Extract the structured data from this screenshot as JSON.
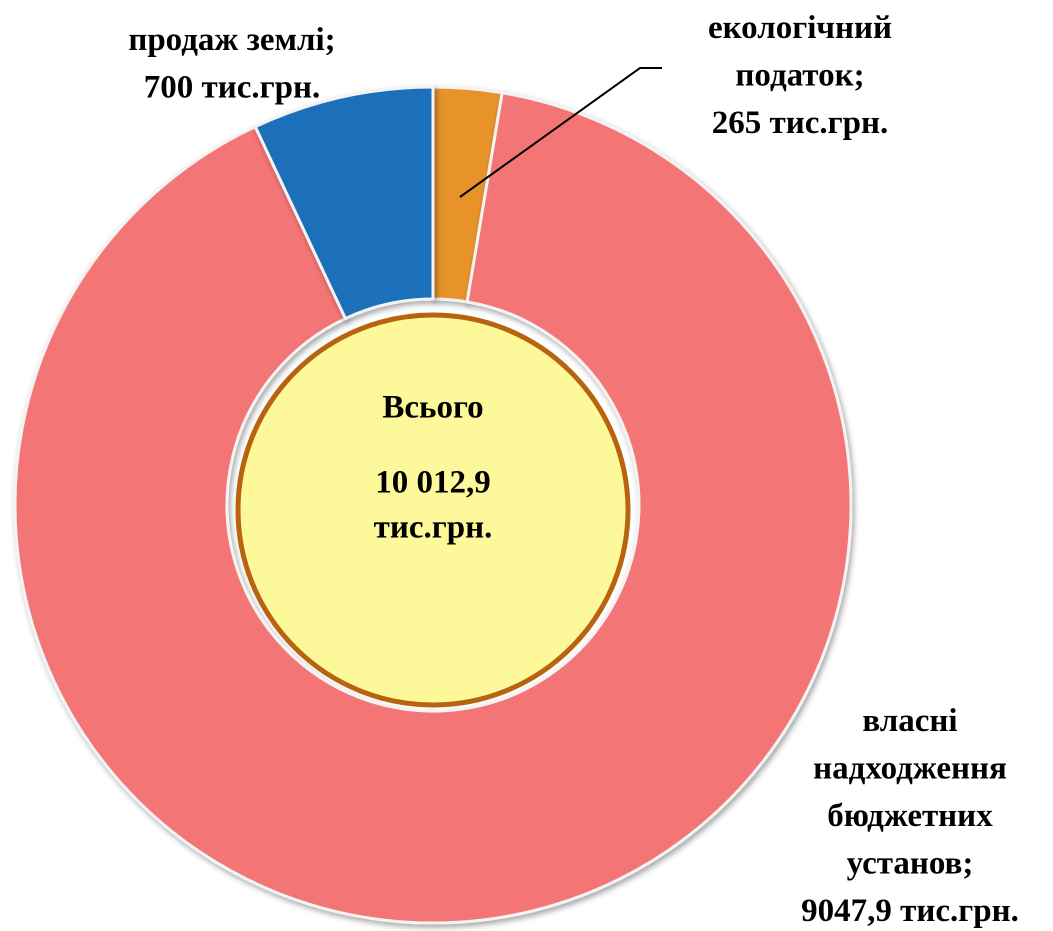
{
  "chart_data": {
    "type": "donut",
    "categories": [
      "екологічний податок;",
      "власні надходження бюджетних установ;",
      "продаж землі;"
    ],
    "values": [
      265,
      9047.9,
      700
    ],
    "value_labels": [
      "265 тис.грн.",
      "9047,9 тис.грн.",
      "700 тис.грн."
    ],
    "colors": [
      "#e8922a",
      "#f47474",
      "#1a6fba"
    ],
    "center_title": "Всього",
    "total": {
      "value": 10012.9,
      "label": "10 012,9"
    },
    "total_unit": "тис.грн."
  }
}
